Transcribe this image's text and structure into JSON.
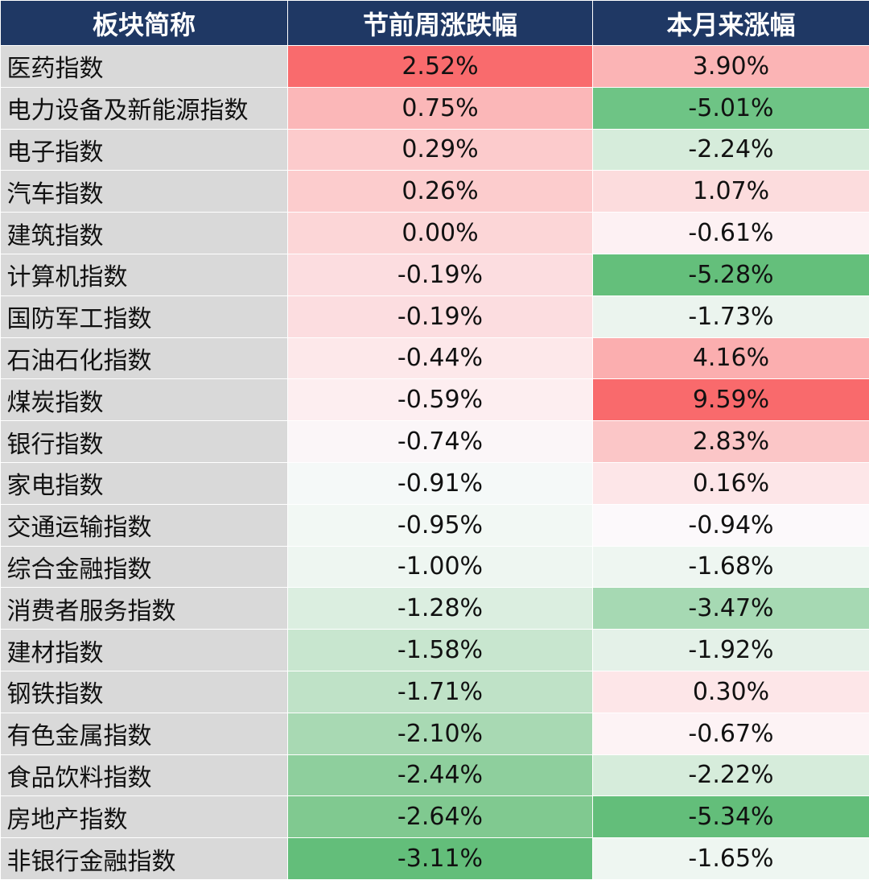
{
  "chart_data": {
    "type": "table",
    "columns": [
      "板块简称",
      "节前周涨跌幅",
      "本月来涨幅"
    ],
    "rows": [
      {
        "name": "医药指数",
        "pre_holiday_week_change": "2.52%",
        "month_to_date_change": "3.90%",
        "colors": [
          "#f96b6d",
          "#fbb4b5"
        ]
      },
      {
        "name": "电力设备及新能源指数",
        "pre_holiday_week_change": "0.75%",
        "month_to_date_change": "-5.01%",
        "colors": [
          "#fbb7b8",
          "#6ec485"
        ]
      },
      {
        "name": "电子指数",
        "pre_holiday_week_change": "0.29%",
        "month_to_date_change": "-2.24%",
        "colors": [
          "#fccbcc",
          "#d6ecdb"
        ]
      },
      {
        "name": "汽车指数",
        "pre_holiday_week_change": "0.26%",
        "month_to_date_change": "1.07%",
        "colors": [
          "#fccccd",
          "#fcdcdd"
        ]
      },
      {
        "name": "建筑指数",
        "pre_holiday_week_change": "0.00%",
        "month_to_date_change": "-0.61%",
        "colors": [
          "#fcd6d7",
          "#fdf1f3"
        ]
      },
      {
        "name": "计算机指数",
        "pre_holiday_week_change": "-0.19%",
        "month_to_date_change": "-5.28%",
        "colors": [
          "#fcdde0",
          "#64bf7b"
        ]
      },
      {
        "name": "国防军工指数",
        "pre_holiday_week_change": "-0.19%",
        "month_to_date_change": "-1.73%",
        "colors": [
          "#fcdde0",
          "#ebf4ee"
        ]
      },
      {
        "name": "石油石化指数",
        "pre_holiday_week_change": "-0.44%",
        "month_to_date_change": "4.16%",
        "colors": [
          "#fde8ea",
          "#fbaeaf"
        ]
      },
      {
        "name": "煤炭指数",
        "pre_holiday_week_change": "-0.59%",
        "month_to_date_change": "9.59%",
        "colors": [
          "#fdeef0",
          "#f96a6c"
        ]
      },
      {
        "name": "银行指数",
        "pre_holiday_week_change": "-0.74%",
        "month_to_date_change": "2.83%",
        "colors": [
          "#fbf6f8",
          "#fbc6c7"
        ]
      },
      {
        "name": "家电指数",
        "pre_holiday_week_change": "-0.91%",
        "month_to_date_change": "0.16%",
        "colors": [
          "#f5f9f8",
          "#fde6e8"
        ]
      },
      {
        "name": "交通运输指数",
        "pre_holiday_week_change": "-0.95%",
        "month_to_date_change": "-0.94%",
        "colors": [
          "#f2f8f4",
          "#fcf9fb"
        ]
      },
      {
        "name": "综合金融指数",
        "pre_holiday_week_change": "-1.00%",
        "month_to_date_change": "-1.68%",
        "colors": [
          "#eef6f1",
          "#eef6f1"
        ]
      },
      {
        "name": "消费者服务指数",
        "pre_holiday_week_change": "-1.28%",
        "month_to_date_change": "-3.47%",
        "colors": [
          "#dbeee0",
          "#a6d9b3"
        ]
      },
      {
        "name": "建材指数",
        "pre_holiday_week_change": "-1.58%",
        "month_to_date_change": "-1.92%",
        "colors": [
          "#c8e6cf",
          "#e4f1e8"
        ]
      },
      {
        "name": "钢铁指数",
        "pre_holiday_week_change": "-1.71%",
        "month_to_date_change": "0.30%",
        "colors": [
          "#bfe2c7",
          "#fde6e8"
        ]
      },
      {
        "name": "有色金属指数",
        "pre_holiday_week_change": "-2.10%",
        "month_to_date_change": "-0.67%",
        "colors": [
          "#a8d9b3",
          "#fdf3f5"
        ]
      },
      {
        "name": "食品饮料指数",
        "pre_holiday_week_change": "-2.44%",
        "month_to_date_change": "-2.22%",
        "colors": [
          "#8ecf9d",
          "#d6ecdb"
        ]
      },
      {
        "name": "房地产指数",
        "pre_holiday_week_change": "-2.64%",
        "month_to_date_change": "-5.34%",
        "colors": [
          "#80c990",
          "#63be7a"
        ]
      },
      {
        "name": "非银行金融指数",
        "pre_holiday_week_change": "-3.11%",
        "month_to_date_change": "-1.65%",
        "colors": [
          "#63be7a",
          "#eef6f1"
        ]
      }
    ]
  }
}
